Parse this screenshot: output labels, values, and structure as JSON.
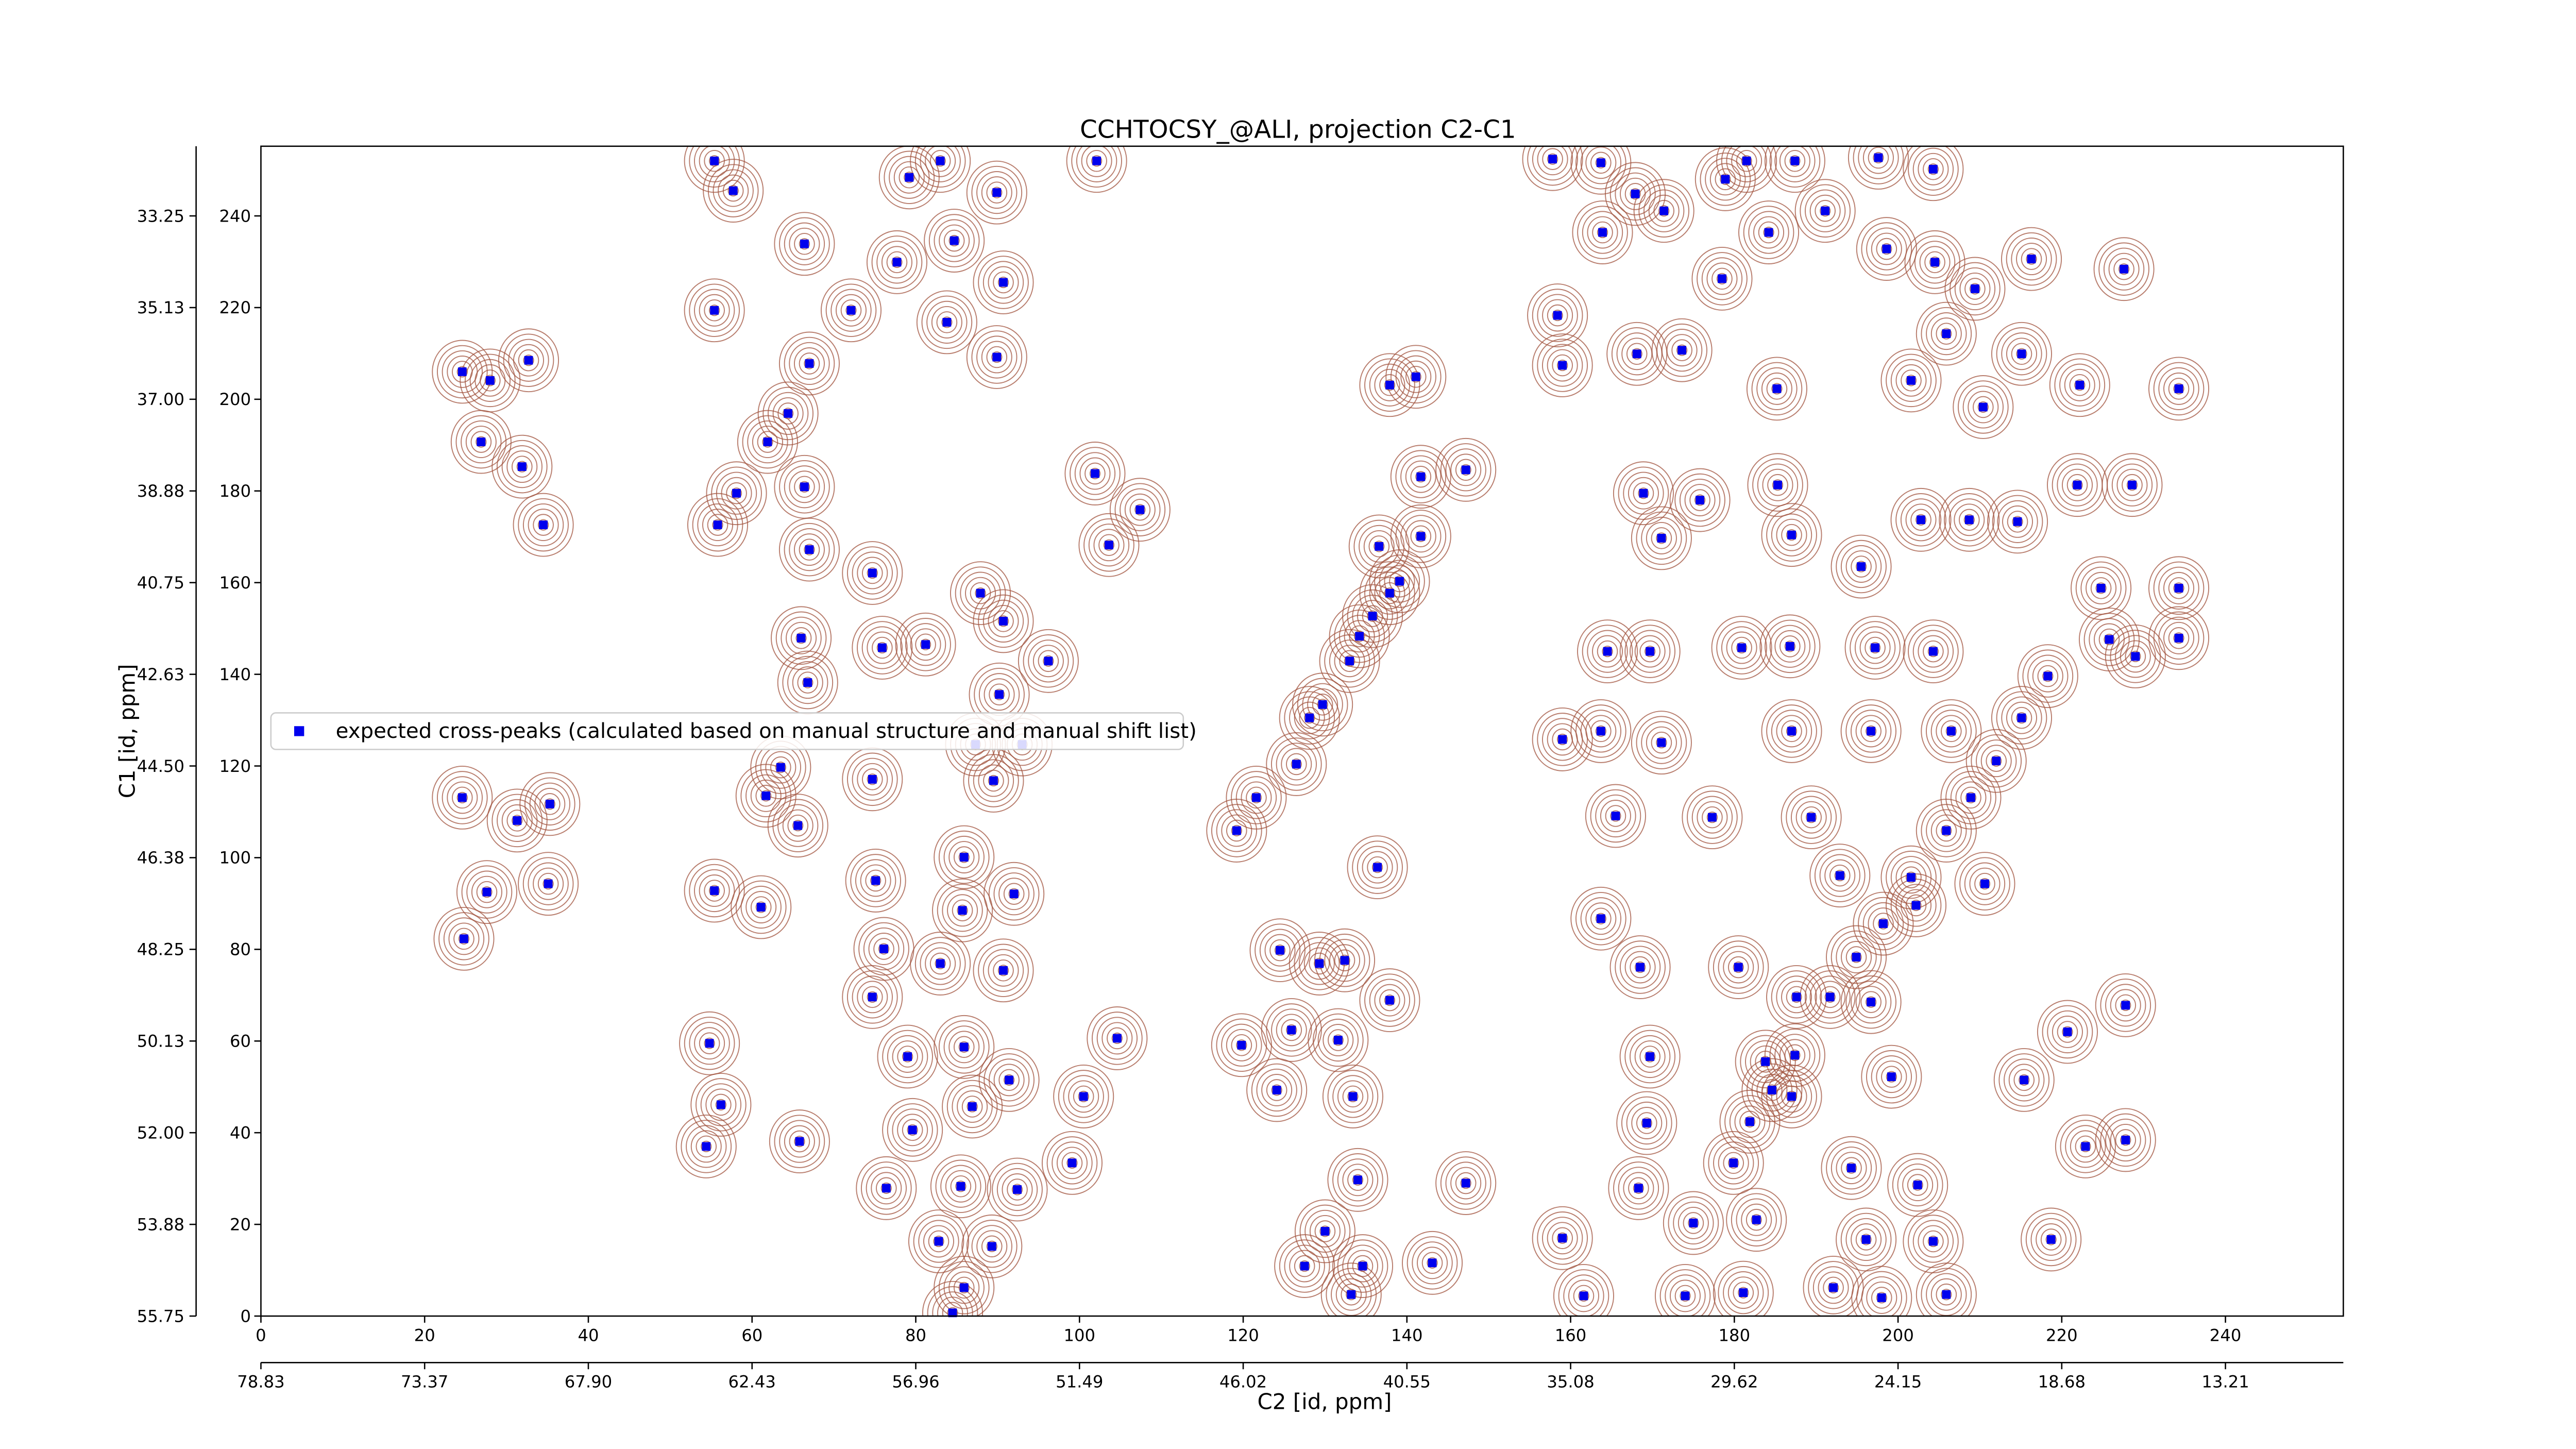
{
  "chart_data": {
    "type": "scatter",
    "title": "CCHTOCSY_@ALI, projection C2-C1",
    "x_label": "C2 [id, ppm]",
    "y_label": "C1 [id, ppm]",
    "xlim": [
      0,
      254.4
    ],
    "ylim": [
      0,
      255.2
    ],
    "xticks": [
      0,
      20,
      40,
      60,
      80,
      100,
      120,
      140,
      160,
      180,
      200,
      220,
      240
    ],
    "yticks": [
      0,
      20,
      40,
      60,
      80,
      100,
      120,
      140,
      160,
      180,
      200,
      220,
      240
    ],
    "x2ticks": [
      {
        "value": 0,
        "label": "78.83"
      },
      {
        "value": 20,
        "label": "73.37"
      },
      {
        "value": 40,
        "label": "67.90"
      },
      {
        "value": 60,
        "label": "62.43"
      },
      {
        "value": 80,
        "label": "56.96"
      },
      {
        "value": 100,
        "label": "51.49"
      },
      {
        "value": 120,
        "label": "46.02"
      },
      {
        "value": 140,
        "label": "40.55"
      },
      {
        "value": 160,
        "label": "35.08"
      },
      {
        "value": 180,
        "label": "29.62"
      },
      {
        "value": 200,
        "label": "24.15"
      },
      {
        "value": 220,
        "label": "18.68"
      },
      {
        "value": 240,
        "label": "13.21"
      }
    ],
    "y2ticks": [
      {
        "value": 0,
        "label": "55.75"
      },
      {
        "value": 20,
        "label": "53.88"
      },
      {
        "value": 40,
        "label": "52.00"
      },
      {
        "value": 60,
        "label": "50.13"
      },
      {
        "value": 80,
        "label": "48.25"
      },
      {
        "value": 100,
        "label": "46.38"
      },
      {
        "value": 120,
        "label": "44.50"
      },
      {
        "value": 140,
        "label": "42.63"
      },
      {
        "value": 160,
        "label": "40.75"
      },
      {
        "value": 180,
        "label": "38.88"
      },
      {
        "value": 200,
        "label": "37.00"
      },
      {
        "value": 220,
        "label": "35.13"
      },
      {
        "value": 240,
        "label": "33.25"
      }
    ],
    "contour_color": "#a0523c",
    "legend": "upper left",
    "series": [
      {
        "name": "expected cross-peaks (calculated based on manual structure and manual shift list)",
        "color": "#0000ee",
        "x": [
          24.6,
          28.0,
          26.9,
          32.7,
          31.9,
          34.5,
          24.6,
          27.6,
          24.8,
          31.3,
          35.3,
          35.1,
          55.4,
          57.7,
          55.4,
          66.4,
          72.1,
          67.0,
          64.4,
          61.9,
          58.1,
          55.8,
          66.4,
          67.0,
          66.0,
          66.8,
          63.5,
          65.6,
          61.7,
          55.4,
          61.1,
          54.8,
          56.2,
          54.4,
          65.8,
          75.1,
          74.7,
          79.2,
          77.7,
          84.7,
          83.8,
          89.9,
          89.9,
          83.0,
          90.7,
          102.1,
          74.7,
          75.9,
          81.2,
          87.9,
          90.7,
          90.2,
          96.2,
          87.3,
          93.0,
          89.5,
          85.9,
          85.7,
          92.0,
          76.1,
          83.0,
          90.7,
          74.7,
          79.0,
          85.9,
          91.4,
          86.9,
          79.6,
          76.4,
          85.5,
          82.8,
          85.9,
          89.3,
          92.4,
          84.5,
          100.5,
          104.6,
          99.1,
          101.9,
          103.6,
          107.4,
          119.2,
          121.6,
          126.5,
          128.1,
          129.7,
          133.0,
          134.2,
          135.8,
          137.9,
          139.1,
          136.6,
          141.7,
          141.7,
          137.9,
          141.1,
          147.2,
          124.5,
          129.3,
          132.4,
          119.8,
          125.9,
          131.6,
          137.9,
          124.1,
          133.4,
          134.0,
          130.0,
          127.5,
          134.6,
          133.2,
          143.1,
          136.4,
          147.2,
          157.8,
          163.7,
          167.9,
          171.4,
          163.9,
          158.4,
          159.0,
          168.1,
          173.6,
          178.5,
          178.9,
          181.5,
          187.4,
          184.2,
          191.1,
          197.6,
          198.6,
          204.5,
          204.3,
          201.6,
          205.9,
          209.4,
          210.4,
          216.3,
          215.1,
          222.2,
          227.6,
          234.3,
          185.2,
          168.9,
          171.1,
          175.8,
          185.3,
          187.0,
          195.5,
          202.8,
          208.7,
          214.6,
          221.9,
          228.6,
          234.3,
          234.3,
          224.8,
          229.0,
          164.5,
          169.7,
          180.9,
          186.8,
          197.2,
          204.3,
          218.3,
          181.9,
          184.6,
          187.4,
          191.7,
          194.9,
          198.2,
          201.6,
          205.9,
          208.9,
          212.0,
          215.1,
          159.0,
          163.7,
          171.1,
          165.5,
          177.3,
          187.0,
          196.7,
          206.5,
          189.4,
          192.9,
          202.2,
          210.6,
          163.7,
          168.5,
          180.5,
          187.6,
          196.7,
          199.2,
          183.8,
          169.7,
          169.3,
          187.0,
          194.3,
          179.9,
          182.7,
          175.0,
          168.3,
          159.0,
          161.6,
          174.0,
          181.1,
          192.1,
          198.0,
          205.9,
          196.1,
          202.4,
          220.7,
          215.4,
          222.9,
          227.8,
          227.8,
          218.7,
          204.3,
          225.8
        ],
        "y": [
          206.0,
          204.1,
          190.7,
          208.5,
          185.3,
          172.6,
          113.1,
          92.5,
          82.3,
          108.1,
          111.7,
          94.3,
          252.0,
          245.5,
          219.4,
          233.9,
          219.4,
          207.8,
          196.9,
          190.7,
          179.5,
          172.6,
          180.9,
          167.2,
          147.9,
          138.2,
          119.7,
          107.0,
          113.5,
          92.8,
          89.2,
          59.5,
          46.1,
          37.0,
          38.1,
          95.0,
          117.1,
          248.4,
          229.9,
          234.6,
          216.8,
          245.1,
          209.2,
          252.0,
          225.5,
          252.0,
          162.1,
          145.8,
          146.5,
          157.7,
          151.6,
          135.6,
          142.9,
          124.7,
          124.7,
          116.8,
          100.1,
          88.5,
          92.1,
          80.1,
          76.9,
          75.4,
          69.6,
          56.6,
          58.7,
          51.5,
          45.7,
          40.6,
          27.9,
          28.3,
          16.3,
          6.2,
          15.2,
          27.6,
          0.7,
          47.9,
          60.6,
          33.4,
          183.8,
          168.2,
          175.9,
          105.9,
          113.1,
          120.4,
          130.5,
          133.4,
          142.9,
          148.3,
          152.7,
          157.7,
          160.3,
          167.9,
          170.1,
          183.1,
          203.1,
          204.9,
          184.6,
          79.8,
          76.9,
          77.6,
          59.1,
          62.4,
          60.2,
          68.9,
          49.3,
          47.9,
          29.7,
          18.5,
          10.9,
          10.9,
          4.7,
          11.6,
          97.9,
          29.0,
          252.4,
          251.6,
          244.8,
          241.1,
          236.4,
          218.3,
          207.4,
          209.9,
          210.7,
          226.3,
          248.0,
          252.0,
          252.0,
          236.4,
          241.1,
          252.7,
          232.8,
          229.9,
          250.2,
          204.1,
          214.3,
          224.1,
          198.3,
          230.6,
          209.9,
          203.1,
          228.4,
          202.3,
          202.3,
          179.5,
          169.7,
          178.0,
          181.3,
          170.4,
          163.5,
          173.7,
          173.7,
          173.3,
          181.3,
          181.3,
          158.8,
          147.9,
          158.8,
          143.9,
          145.0,
          145.0,
          145.8,
          146.1,
          145.8,
          145.0,
          139.6,
          42.4,
          49.3,
          56.9,
          69.6,
          78.3,
          85.6,
          95.7,
          105.9,
          113.1,
          121.1,
          130.5,
          125.8,
          127.6,
          125.1,
          109.1,
          108.8,
          127.6,
          127.6,
          127.6,
          108.8,
          96.1,
          89.6,
          94.3,
          86.7,
          76.1,
          76.1,
          69.6,
          68.5,
          52.2,
          55.5,
          56.6,
          42.1,
          47.9,
          32.3,
          33.4,
          21.0,
          20.3,
          27.9,
          17.0,
          4.4,
          4.4,
          5.1,
          6.2,
          4.0,
          4.7,
          16.7,
          28.6,
          62.0,
          51.5,
          37.0,
          67.8,
          38.4,
          16.7,
          16.3,
          147.6
        ]
      }
    ]
  }
}
